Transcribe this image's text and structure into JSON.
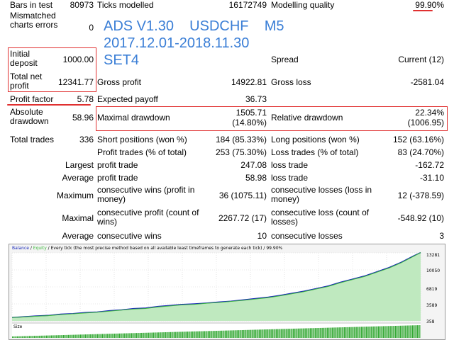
{
  "report": {
    "bars_in_test": {
      "label": "Bars in test",
      "value": "80973"
    },
    "ticks_modelled": {
      "label": "Ticks modelled",
      "value": "16172749"
    },
    "modelling_quality": {
      "label": "Modelling quality",
      "value": "99.90%"
    },
    "mismatched": {
      "label": "Mismatched charts errors",
      "value": "0"
    },
    "initial_deposit": {
      "label": "Initial deposit",
      "value": "1000.00"
    },
    "spread": {
      "label": "Spread",
      "value": "Current (12)"
    },
    "total_net_profit": {
      "label": "Total net profit",
      "value": "12341.77"
    },
    "gross_profit": {
      "label": "Gross profit",
      "value": "14922.81"
    },
    "gross_loss": {
      "label": "Gross loss",
      "value": "-2581.04"
    },
    "profit_factor": {
      "label": "Profit factor",
      "value": "5.78"
    },
    "expected_payoff": {
      "label": "Expected payoff",
      "value": "36.73"
    },
    "absolute_drawdown": {
      "label": "Absolute drawdown",
      "value": "58.96"
    },
    "maximal_drawdown": {
      "label": "Maximal drawdown",
      "value": "1505.71",
      "value2": "(14.80%)"
    },
    "relative_drawdown": {
      "label": "Relative drawdown",
      "value": "22.34%",
      "value2": "(1006.95)"
    },
    "total_trades": {
      "label": "Total trades",
      "value": "336"
    },
    "short_positions": {
      "label": "Short positions (won %)",
      "value": "184 (85.33%)"
    },
    "long_positions": {
      "label": "Long positions (won %)",
      "value": "152 (63.16%)"
    },
    "profit_trades": {
      "label": "Profit trades (% of total)",
      "value": "253 (75.30%)"
    },
    "loss_trades": {
      "label": "Loss trades (% of total)",
      "value": "83 (24.70%)"
    },
    "largest": {
      "label": "Largest",
      "profit_label": "profit trade",
      "profit_value": "247.08",
      "loss_label": "loss trade",
      "loss_value": "-162.72"
    },
    "average": {
      "label": "Average",
      "profit_label": "profit trade",
      "profit_value": "58.98",
      "loss_label": "loss trade",
      "loss_value": "-31.10"
    },
    "maximum": {
      "label": "Maximum",
      "wins_label": "consecutive wins (profit in money)",
      "wins_value": "36 (1075.11)",
      "losses_label": "consecutive losses (loss in money)",
      "losses_value": "12 (-378.59)"
    },
    "maximal": {
      "label": "Maximal",
      "profit_label": "consecutive profit (count of wins)",
      "profit_value": "2267.72 (17)",
      "loss_label": "consecutive loss (count of losses)",
      "loss_value": "-548.92 (10)"
    },
    "average_consec": {
      "label": "Average",
      "wins_label": "consecutive wins",
      "wins_value": "10",
      "losses_label": "consecutive losses",
      "losses_value": "3"
    }
  },
  "overlay": {
    "line1": "ADS V1.30    USDCHF    M5",
    "line2": "2017.12.01-2018.11.30",
    "line3": "SET4",
    "color": "#3a7ed6"
  },
  "chart_data": {
    "type": "line",
    "header": {
      "balance": "Balance",
      "sep": " / ",
      "equity": "Equity",
      "rest": " / Every tick (the most precise method based on all available least timeframes to generate each tick) / 99.90%"
    },
    "yticks": [
      "13281",
      "10050",
      "6819",
      "3589",
      "358"
    ],
    "yticks_values": [
      13281,
      10050,
      6819,
      3589,
      358
    ],
    "ylim": [
      358,
      13281
    ],
    "lower_panel_label": "Size",
    "series": [
      {
        "name": "Balance",
        "color": "#1a2ab8",
        "x": [
          0,
          10,
          20,
          30,
          40,
          50,
          60,
          70,
          80,
          90,
          100,
          110,
          120,
          130,
          140,
          150,
          160,
          170,
          180,
          190,
          200,
          210,
          220,
          230,
          240,
          250,
          260,
          270,
          280,
          290,
          300,
          310,
          320,
          330,
          336
        ],
        "values": [
          1000,
          1150,
          1300,
          1400,
          1650,
          1750,
          1950,
          2050,
          2300,
          2450,
          2700,
          2800,
          3100,
          3300,
          3500,
          3600,
          3750,
          3950,
          4100,
          4350,
          4600,
          4850,
          5200,
          5600,
          6000,
          6500,
          7000,
          7700,
          8300,
          8900,
          9700,
          10500,
          11500,
          12700,
          13341
        ]
      },
      {
        "name": "Equity",
        "color": "#3cb83c",
        "x": [
          0,
          10,
          20,
          30,
          40,
          50,
          60,
          70,
          80,
          90,
          100,
          110,
          120,
          130,
          140,
          150,
          160,
          170,
          180,
          190,
          200,
          210,
          220,
          230,
          240,
          250,
          260,
          270,
          280,
          290,
          300,
          310,
          320,
          330,
          336
        ],
        "values": [
          1000,
          1100,
          1250,
          1350,
          1550,
          1700,
          1850,
          2000,
          2200,
          2400,
          2600,
          2700,
          3000,
          3200,
          3400,
          3500,
          3700,
          3850,
          4050,
          4250,
          4500,
          4750,
          5100,
          5500,
          5900,
          6400,
          6900,
          7600,
          8200,
          8800,
          9600,
          10400,
          11400,
          12600,
          13341
        ]
      }
    ],
    "colors": {
      "balance": "#1a2ab8",
      "equity": "#3cb83c",
      "fill": "#bfe9bf",
      "bars": "#33a833"
    }
  }
}
